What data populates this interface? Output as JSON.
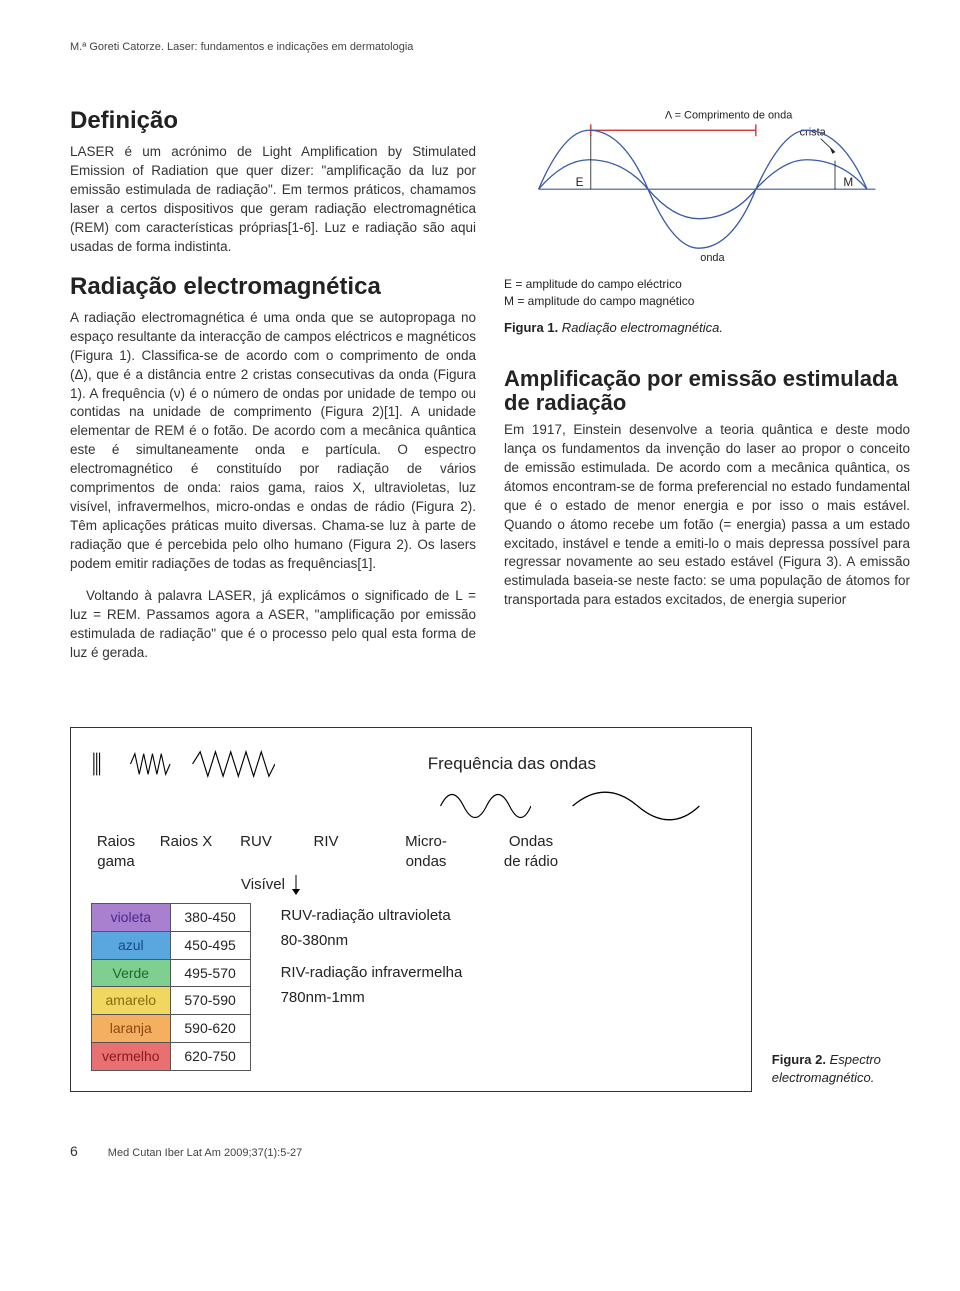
{
  "header": "M.ª Goreti Catorze. Laser: fundamentos e indicações em dermatologia",
  "col1": {
    "s1_title": "Definição",
    "s1_body": "LASER é um acrónimo de Light Amplification by Stimulated Emission of Radiation que quer dizer: \"amplificação da luz por emissão estimulada de radiação\". Em termos práticos, chamamos laser a certos dispositivos que geram radiação electromagnética (REM) com características próprias[1-6]. Luz e radiação são aqui usadas de forma indistinta.",
    "s2_title": "Radiação electromagnética",
    "s2_body": "A radiação electromagnética é uma onda que se autopropaga no espaço resultante da interacção de campos eléctricos e magnéticos (Figura 1). Classifica-se de acordo com o comprimento de onda (Δ), que é a distância entre 2 cristas consecutivas da onda (Figura 1). A frequência (ν) é o número de ondas por unidade de tempo ou contidas na unidade de comprimento (Figura 2)[1]. A unidade elementar de REM é o fotão. De acordo com a mecânica quântica este é simultaneamente onda e partícula. O espectro electromagnético é constituído por radiação de vários comprimentos de onda: raios gama, raios X, ultravioletas, luz visível, infravermelhos, micro-ondas e ondas de rádio (Figura 2). Têm aplicações práticas muito diversas. Chama-se luz à parte de radiação que é percebida pelo olho humano (Figura 2). Os lasers podem emitir radiações de todas as frequências[1].",
    "s2_body2": "Voltando à palavra LASER, já explicámos o significado de L = luz = REM. Passamos agora a ASER, \"amplificação por emissão estimulada de radiação\" que é o processo pelo qual esta forma de luz é gerada."
  },
  "fig1": {
    "lambda_label": "Λ = Comprimento de onda",
    "crista": "crista",
    "E": "E",
    "M": "M",
    "onda": "onda",
    "legend_E": "E = amplitude do campo eléctrico",
    "legend_M": "M = amplitude do campo magnético",
    "caption_bold": "Figura 1.",
    "caption_ital": " Radiação electromagnética.",
    "colors": {
      "wave_line": "#3a5aa5",
      "midline": "#3a5aa5",
      "lambda_line": "#cc2222",
      "text": "#222222"
    }
  },
  "col2": {
    "s3_title": "Amplificação por emissão estimulada de radiação",
    "s3_body": "Em 1917, Einstein desenvolve a teoria quântica e deste modo lança os fundamentos da invenção do laser ao propor o conceito de emissão estimulada. De acordo com a mecânica quântica, os átomos encontram-se de forma preferencial no estado fundamental que é o estado de menor energia e por isso o mais estável. Quando o átomo recebe um fotão (= energia) passa a um estado excitado, instável e tende a emiti-lo o mais depressa possível para regressar novamente ao seu estado estável (Figura 3). A emissão estimulada baseia-se neste facto: se uma população de átomos for transportada para estados excitados, de energia superior"
  },
  "fig2": {
    "freq_title": "Frequência das ondas",
    "labels": {
      "raios_gama": "Raios\ngama",
      "raios_x": "Raios X",
      "ruv": "RUV",
      "riv": "RIV",
      "micro": "Micro-\nondas",
      "radio": "Ondas\nde rádio"
    },
    "visivel": "Visível",
    "spectrum_rows": [
      {
        "name": "violeta",
        "range": "380-450",
        "bg": "#a97fd0",
        "tc": "#4a2a88"
      },
      {
        "name": "azul",
        "range": "450-495",
        "bg": "#5aa7e0",
        "tc": "#144a88"
      },
      {
        "name": "Verde",
        "range": "495-570",
        "bg": "#7fd090",
        "tc": "#1a6a2a"
      },
      {
        "name": "amarelo",
        "range": "570-590",
        "bg": "#f0d760",
        "tc": "#8a6a10"
      },
      {
        "name": "laranja",
        "range": "590-620",
        "bg": "#f4b060",
        "tc": "#8a4a10"
      },
      {
        "name": "vermelho",
        "range": "620-750",
        "bg": "#e87070",
        "tc": "#8a1a1a"
      }
    ],
    "ruv_line": "RUV-radiação ultravioleta",
    "ruv_range": "80-380nm",
    "riv_line": "RIV-radiação infravermelha",
    "riv_range": "780nm-1mm",
    "caption_bold": "Figura 2.",
    "caption_ital": " Espectro electromagnético.",
    "wave_color": "#000000"
  },
  "footer": {
    "page": "6",
    "citation": "Med Cutan Iber Lat Am 2009;37(1):5-27"
  }
}
